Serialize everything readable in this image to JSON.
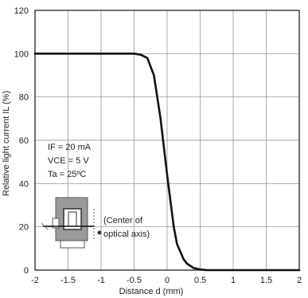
{
  "chart_data": {
    "type": "line",
    "title": "",
    "xlabel": "Distance d (mm)",
    "ylabel": "Relative light current IL (%)",
    "xlim": [
      -2,
      2
    ],
    "ylim": [
      0,
      120
    ],
    "x_ticks": [
      "-2",
      "-1.5",
      "-1",
      "-0.5",
      "0",
      "0.5",
      "1",
      "1.5",
      "2"
    ],
    "y_ticks": [
      "0",
      "20",
      "40",
      "60",
      "80",
      "100",
      "120"
    ],
    "grid": true,
    "series": [
      {
        "x": [
          -2.0,
          -1.0,
          -0.5,
          -0.4,
          -0.3,
          -0.2,
          -0.15,
          -0.1,
          -0.05,
          0.0,
          0.05,
          0.1,
          0.15,
          0.2,
          0.25,
          0.3,
          0.4,
          0.5,
          0.6,
          1.0,
          1.5,
          2.0
        ],
        "y": [
          100,
          100,
          100,
          99.5,
          98,
          90,
          80,
          70,
          57,
          44,
          32,
          20,
          12,
          8.5,
          5,
          3,
          1,
          0.3,
          0,
          0,
          0,
          0
        ]
      }
    ],
    "annotations": {
      "conditions": [
        "IF = 20 mA",
        "VCE = 5 V",
        "Ta = 25ºC"
      ],
      "optical_axis_line1": "(Center of",
      "optical_axis_line2": "optical axis)"
    },
    "colors": {
      "line": "#111111",
      "grid": "#888888",
      "frame": "#222222",
      "sensor_body": "#9a9a9a",
      "sensor_window": "#ffffff",
      "sensor_outline": "#444444"
    }
  },
  "icons": {
    "sensor_diagram": "photointerrupter-sensor-icon"
  }
}
